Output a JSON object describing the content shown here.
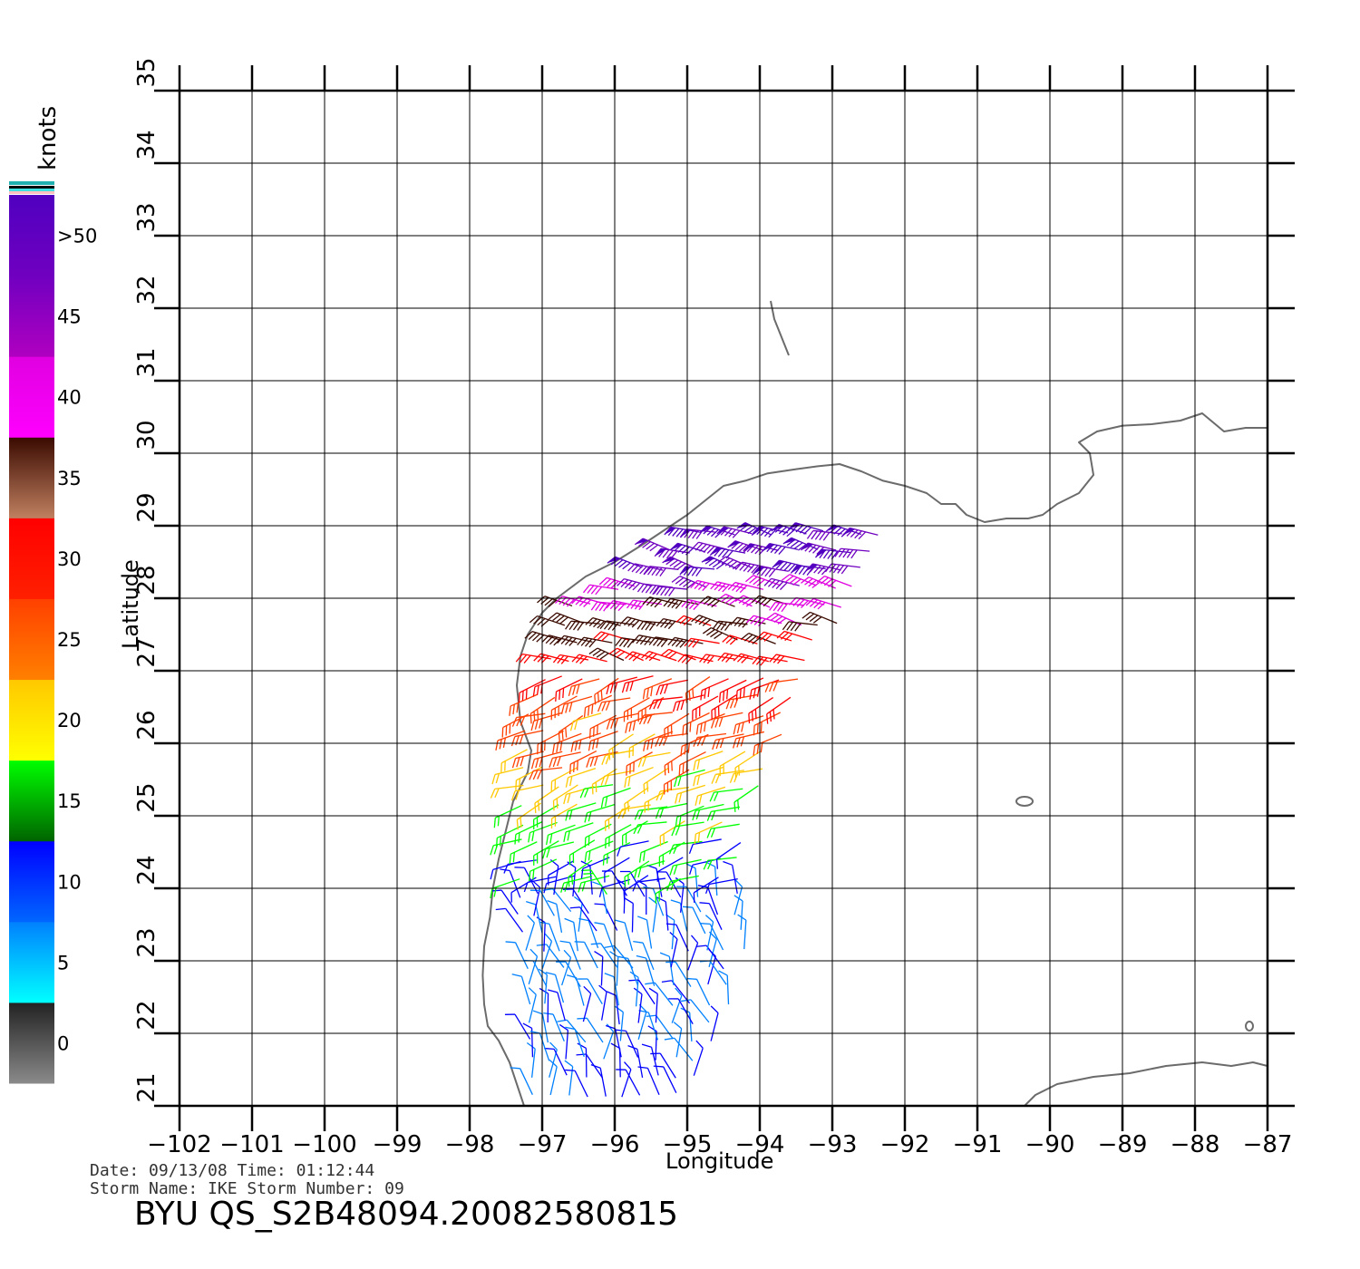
{
  "axes": {
    "xlabel": "Longitude",
    "ylabel": "Latitude",
    "xlim": [
      -102,
      -87
    ],
    "ylim": [
      21,
      35
    ],
    "xticks": [
      "−102",
      "−101",
      "−100",
      "−99",
      "−98",
      "−97",
      "−96",
      "−95",
      "−94",
      "−93",
      "−92",
      "−91",
      "−90",
      "−89",
      "−88",
      "−87"
    ],
    "yticks": [
      "21",
      "22",
      "23",
      "24",
      "25",
      "26",
      "27",
      "28",
      "29",
      "30",
      "31",
      "32",
      "33",
      "34",
      "35"
    ],
    "grid": true
  },
  "colorbar": {
    "unit_label": "knots",
    "labels": [
      ">50",
      "45",
      "40",
      "35",
      "30",
      "25",
      "20",
      "15",
      "10",
      "5",
      "0"
    ],
    "label_values": [
      52.5,
      47.5,
      42.5,
      37.5,
      32.5,
      27.5,
      22.5,
      17.5,
      12.5,
      7.5,
      2.5
    ],
    "bins": [
      {
        "from": 0,
        "to": 5,
        "colors": [
          "#8a8a8a",
          "#222222"
        ]
      },
      {
        "from": 5,
        "to": 10,
        "colors": [
          "#00ffff",
          "#0080ff"
        ]
      },
      {
        "from": 10,
        "to": 15,
        "colors": [
          "#0066ff",
          "#0000ff"
        ]
      },
      {
        "from": 15,
        "to": 20,
        "colors": [
          "#006400",
          "#00ff00"
        ]
      },
      {
        "from": 20,
        "to": 25,
        "colors": [
          "#ffff00",
          "#ffc800"
        ]
      },
      {
        "from": 25,
        "to": 30,
        "colors": [
          "#ff8000",
          "#ff4000"
        ]
      },
      {
        "from": 30,
        "to": 35,
        "colors": [
          "#ff2000",
          "#ff0000"
        ]
      },
      {
        "from": 35,
        "to": 40,
        "colors": [
          "#c08060",
          "#3a0a00"
        ]
      },
      {
        "from": 40,
        "to": 45,
        "colors": [
          "#ff00ff",
          "#e000e0"
        ]
      },
      {
        "from": 45,
        "to": 50,
        "colors": [
          "#b000c0",
          "#7000c0"
        ]
      },
      {
        "from": 50,
        "to": 55,
        "colors": [
          "#7000c0",
          "#5000c0"
        ]
      }
    ]
  },
  "footer": {
    "date_line": "Date: 09/13/08   Time: 01:12:44",
    "storm_line": "Storm  Name: IKE   Storm  Number: 09",
    "product": "BYU  QS_S2B48094.20082580815"
  },
  "colors": {
    "coastline": "#6b6b6b",
    "grid": "#000000",
    "calm": "#333333"
  },
  "chart_data": {
    "type": "wind-barb-map",
    "title": "",
    "xlabel": "Longitude",
    "ylabel": "Latitude",
    "xlim": [
      -102,
      -87
    ],
    "ylim": [
      21,
      35
    ],
    "units": "knots",
    "swath_speed_by_latitude": [
      {
        "lat": 21.5,
        "speed_kt": 11
      },
      {
        "lat": 22.5,
        "speed_kt": 9
      },
      {
        "lat": 23.5,
        "speed_kt": 10
      },
      {
        "lat": 24.5,
        "speed_kt": 16
      },
      {
        "lat": 25.5,
        "speed_kt": 22
      },
      {
        "lat": 26.5,
        "speed_kt": 28
      },
      {
        "lat": 27.5,
        "speed_kt": 36
      },
      {
        "lat": 28.5,
        "speed_kt": 50
      }
    ]
  }
}
